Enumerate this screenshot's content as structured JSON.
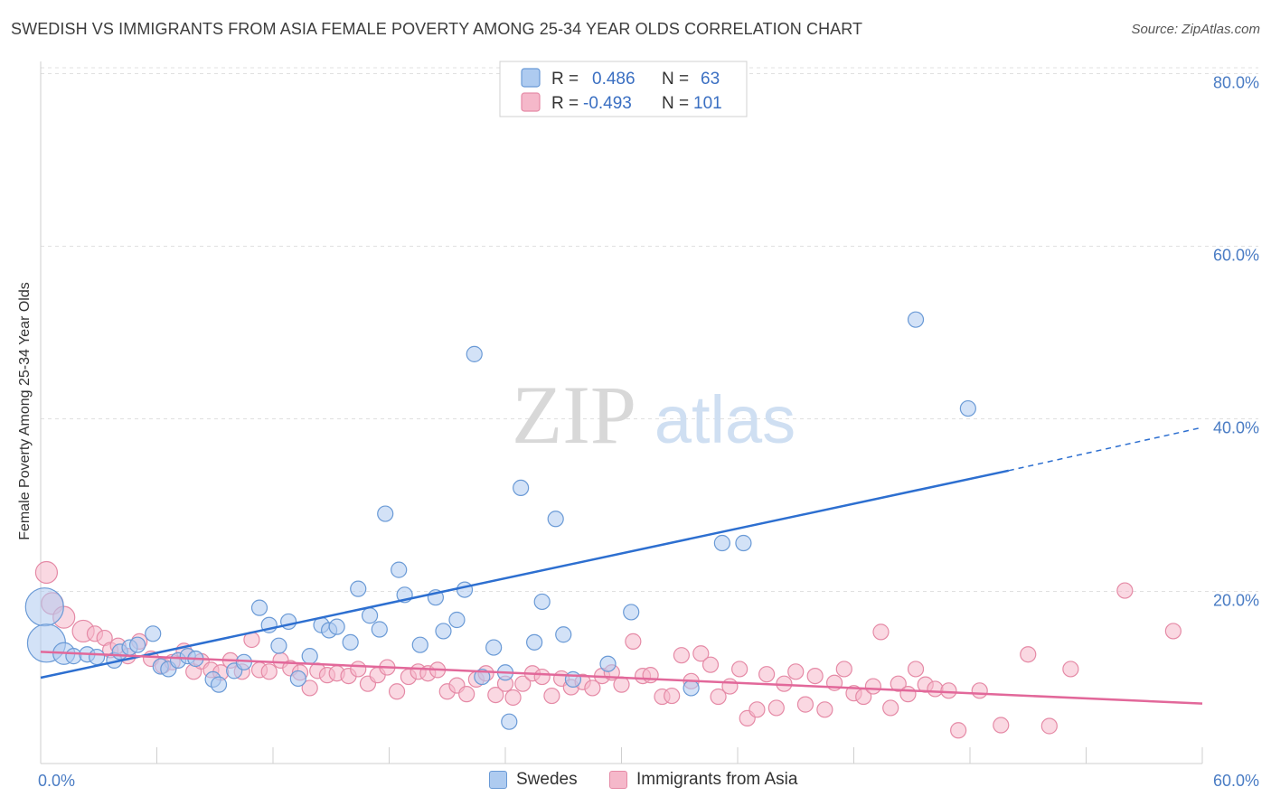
{
  "header": {
    "title": "SWEDISH VS IMMIGRANTS FROM ASIA FEMALE POVERTY AMONG 25-34 YEAR OLDS CORRELATION CHART",
    "source": "Source: ZipAtlas.com"
  },
  "watermark": {
    "zip": "ZIP",
    "atlas": "atlas"
  },
  "colors": {
    "swedes_fill": "#aecbf0",
    "swedes_stroke": "#6a9ad6",
    "swedes_line": "#2d6fd0",
    "asia_fill": "#f5b8ca",
    "asia_stroke": "#e58aa6",
    "asia_line": "#e2689a",
    "grid": "#e0e0e0",
    "axis_text": "#4a7cc4"
  },
  "legend": {
    "swedes": {
      "r_label": "R =",
      "r_value": "0.486",
      "n_label": "N =",
      "n_value": "63"
    },
    "asia": {
      "r_label": "R =",
      "r_value": "-0.493",
      "n_label": "N =",
      "n_value": "101"
    }
  },
  "bottom_legend": {
    "swedes": "Swedes",
    "asia": "Immigrants from Asia"
  },
  "chart_data": {
    "type": "scatter",
    "title": "SWEDISH VS IMMIGRANTS FROM ASIA FEMALE POVERTY AMONG 25-34 YEAR OLDS CORRELATION CHART",
    "xlabel": "",
    "ylabel": "Female Poverty Among 25-34 Year Olds",
    "xlim": [
      0,
      60
    ],
    "ylim": [
      0,
      85
    ],
    "x_tick_labels": [
      "0.0%",
      "60.0%"
    ],
    "y_ticks": [
      20,
      40,
      60,
      80
    ],
    "y_tick_labels": [
      "20.0%",
      "40.0%",
      "60.0%",
      "80.0%"
    ],
    "grid": true,
    "legend_position": "top-center",
    "series": [
      {
        "name": "Swedes",
        "r": 0.486,
        "n": 63,
        "trend": {
          "x_start": 0,
          "y_start": 10.0,
          "x_solid_end": 50,
          "y_solid_end": 34.0,
          "x_end": 60,
          "y_end": 39.0
        },
        "points": [
          [
            0.2,
            18.2,
            3
          ],
          [
            0.3,
            14.0,
            3
          ],
          [
            1.2,
            12.8,
            2
          ],
          [
            1.7,
            12.5,
            1
          ],
          [
            2.4,
            12.7,
            1
          ],
          [
            2.9,
            12.4,
            1
          ],
          [
            3.8,
            12.0,
            1
          ],
          [
            4.1,
            13.0,
            1
          ],
          [
            4.6,
            13.5,
            1
          ],
          [
            5.0,
            13.8,
            1
          ],
          [
            5.8,
            15.1,
            1
          ],
          [
            6.2,
            11.3,
            1
          ],
          [
            6.6,
            11.0,
            1
          ],
          [
            7.1,
            12.0,
            1
          ],
          [
            7.6,
            12.5,
            1
          ],
          [
            8.0,
            12.2,
            1
          ],
          [
            8.9,
            9.8,
            1
          ],
          [
            9.2,
            9.2,
            1
          ],
          [
            10.0,
            10.8,
            1
          ],
          [
            10.5,
            11.8,
            1
          ],
          [
            11.3,
            18.1,
            1
          ],
          [
            11.8,
            16.1,
            1
          ],
          [
            12.3,
            13.7,
            1
          ],
          [
            12.8,
            16.5,
            1
          ],
          [
            13.3,
            9.9,
            1
          ],
          [
            13.9,
            12.5,
            1
          ],
          [
            14.5,
            16.1,
            1
          ],
          [
            14.9,
            15.5,
            1
          ],
          [
            15.3,
            15.9,
            1
          ],
          [
            16.0,
            14.1,
            1
          ],
          [
            16.4,
            20.3,
            1
          ],
          [
            17.0,
            17.2,
            1
          ],
          [
            17.5,
            15.6,
            1
          ],
          [
            17.8,
            29.0,
            1
          ],
          [
            18.5,
            22.5,
            1
          ],
          [
            18.8,
            19.6,
            1
          ],
          [
            19.6,
            13.8,
            1
          ],
          [
            20.4,
            19.3,
            1
          ],
          [
            20.8,
            15.4,
            1
          ],
          [
            21.5,
            16.7,
            1
          ],
          [
            21.9,
            20.2,
            1
          ],
          [
            22.4,
            47.5,
            1
          ],
          [
            22.8,
            10.1,
            1
          ],
          [
            23.4,
            13.5,
            1
          ],
          [
            24.0,
            10.6,
            1
          ],
          [
            24.2,
            4.9,
            1
          ],
          [
            24.8,
            32.0,
            1
          ],
          [
            25.5,
            14.1,
            1
          ],
          [
            25.9,
            18.8,
            1
          ],
          [
            26.6,
            28.4,
            1
          ],
          [
            27.0,
            15.0,
            1
          ],
          [
            27.5,
            9.8,
            1
          ],
          [
            29.3,
            11.6,
            1
          ],
          [
            30.5,
            17.6,
            1
          ],
          [
            33.6,
            8.8,
            1
          ],
          [
            35.2,
            25.6,
            1
          ],
          [
            36.3,
            25.6,
            1
          ],
          [
            45.2,
            51.5,
            1
          ],
          [
            47.9,
            41.2,
            1
          ]
        ]
      },
      {
        "name": "Immigrants from Asia",
        "r": -0.493,
        "n": 101,
        "trend": {
          "x_start": 0,
          "y_start": 13.0,
          "x_end": 60,
          "y_end": 7.0
        },
        "points": [
          [
            0.3,
            22.2,
            2
          ],
          [
            0.6,
            18.6,
            2
          ],
          [
            1.2,
            17.0,
            2
          ],
          [
            2.2,
            15.4,
            2
          ],
          [
            2.8,
            15.1,
            1
          ],
          [
            3.3,
            14.6,
            1
          ],
          [
            3.6,
            13.2,
            1
          ],
          [
            4.0,
            13.7,
            1
          ],
          [
            4.5,
            12.5,
            1
          ],
          [
            5.1,
            14.2,
            1
          ],
          [
            5.7,
            12.2,
            1
          ],
          [
            6.3,
            11.4,
            1
          ],
          [
            6.8,
            11.8,
            1
          ],
          [
            7.4,
            13.1,
            1
          ],
          [
            7.9,
            10.7,
            1
          ],
          [
            8.3,
            11.9,
            1
          ],
          [
            8.8,
            10.9,
            1
          ],
          [
            9.3,
            10.6,
            1
          ],
          [
            9.8,
            12.0,
            1
          ],
          [
            10.4,
            10.7,
            1
          ],
          [
            10.9,
            14.4,
            1
          ],
          [
            11.3,
            10.9,
            1
          ],
          [
            11.8,
            10.7,
            1
          ],
          [
            12.4,
            12.0,
            1
          ],
          [
            12.9,
            11.1,
            1
          ],
          [
            13.4,
            10.6,
            1
          ],
          [
            13.9,
            8.8,
            1
          ],
          [
            14.3,
            10.8,
            1
          ],
          [
            14.8,
            10.3,
            1
          ],
          [
            15.3,
            10.5,
            1
          ],
          [
            15.9,
            10.2,
            1
          ],
          [
            16.4,
            11.0,
            1
          ],
          [
            16.9,
            9.3,
            1
          ],
          [
            17.4,
            10.3,
            1
          ],
          [
            17.9,
            11.2,
            1
          ],
          [
            18.4,
            8.4,
            1
          ],
          [
            19.0,
            10.1,
            1
          ],
          [
            19.5,
            10.7,
            1
          ],
          [
            20.0,
            10.5,
            1
          ],
          [
            20.5,
            10.9,
            1
          ],
          [
            21.0,
            8.4,
            1
          ],
          [
            21.5,
            9.1,
            1
          ],
          [
            22.0,
            8.1,
            1
          ],
          [
            22.5,
            9.8,
            1
          ],
          [
            23.0,
            10.5,
            1
          ],
          [
            23.5,
            8.0,
            1
          ],
          [
            24.0,
            9.3,
            1
          ],
          [
            24.4,
            7.7,
            1
          ],
          [
            24.9,
            9.3,
            1
          ],
          [
            25.4,
            10.5,
            1
          ],
          [
            25.9,
            10.1,
            1
          ],
          [
            26.4,
            7.9,
            1
          ],
          [
            26.9,
            9.9,
            1
          ],
          [
            27.4,
            8.9,
            1
          ],
          [
            28.0,
            9.5,
            1
          ],
          [
            28.5,
            8.8,
            1
          ],
          [
            29.0,
            10.2,
            1
          ],
          [
            29.5,
            10.6,
            1
          ],
          [
            30.0,
            9.2,
            1
          ],
          [
            30.6,
            14.2,
            1
          ],
          [
            31.1,
            10.2,
            1
          ],
          [
            31.5,
            10.3,
            1
          ],
          [
            32.1,
            7.8,
            1
          ],
          [
            32.6,
            7.9,
            1
          ],
          [
            33.1,
            12.6,
            1
          ],
          [
            33.6,
            9.6,
            1
          ],
          [
            34.1,
            12.8,
            1
          ],
          [
            34.6,
            11.5,
            1
          ],
          [
            35.0,
            7.8,
            1
          ],
          [
            35.6,
            9.0,
            1
          ],
          [
            36.1,
            11.0,
            1
          ],
          [
            36.5,
            5.3,
            1
          ],
          [
            37.0,
            6.3,
            1
          ],
          [
            37.5,
            10.4,
            1
          ],
          [
            38.0,
            6.5,
            1
          ],
          [
            38.4,
            9.3,
            1
          ],
          [
            39.0,
            10.7,
            1
          ],
          [
            39.5,
            6.9,
            1
          ],
          [
            40.0,
            10.2,
            1
          ],
          [
            40.5,
            6.3,
            1
          ],
          [
            41.0,
            9.4,
            1
          ],
          [
            41.5,
            11.0,
            1
          ],
          [
            42.0,
            8.2,
            1
          ],
          [
            42.5,
            7.8,
            1
          ],
          [
            43.0,
            9.0,
            1
          ],
          [
            43.4,
            15.3,
            1
          ],
          [
            43.9,
            6.5,
            1
          ],
          [
            44.3,
            9.3,
            1
          ],
          [
            44.8,
            8.1,
            1
          ],
          [
            45.2,
            11.0,
            1
          ],
          [
            45.7,
            9.2,
            1
          ],
          [
            46.2,
            8.7,
            1
          ],
          [
            46.9,
            8.5,
            1
          ],
          [
            47.4,
            3.9,
            1
          ],
          [
            48.5,
            8.5,
            1
          ],
          [
            49.6,
            4.5,
            1
          ],
          [
            51.0,
            12.7,
            1
          ],
          [
            52.1,
            4.4,
            1
          ],
          [
            53.2,
            11.0,
            1
          ],
          [
            56.0,
            20.1,
            1
          ],
          [
            58.5,
            15.4,
            1
          ]
        ]
      }
    ]
  }
}
